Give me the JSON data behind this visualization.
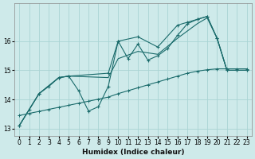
{
  "xlabel": "Humidex (Indice chaleur)",
  "background_color": "#ceeaea",
  "grid_color": "#aad4d4",
  "line_color": "#1a6b6b",
  "xlim": [
    -0.5,
    23.5
  ],
  "ylim": [
    12.75,
    17.3
  ],
  "yticks": [
    13,
    14,
    15,
    16
  ],
  "xticks": [
    0,
    1,
    2,
    3,
    4,
    5,
    6,
    7,
    8,
    9,
    10,
    11,
    12,
    13,
    14,
    15,
    16,
    17,
    18,
    19,
    20,
    21,
    22,
    23
  ],
  "noisy_x": [
    0,
    1,
    2,
    3,
    4,
    5,
    6,
    7,
    8,
    9,
    10,
    11,
    12,
    13,
    14,
    15,
    16,
    17,
    18,
    19,
    20,
    21,
    22,
    23
  ],
  "noisy_y": [
    13.1,
    13.65,
    14.2,
    14.45,
    14.75,
    14.8,
    14.3,
    13.6,
    13.75,
    14.45,
    16.0,
    15.4,
    15.9,
    15.35,
    15.5,
    15.75,
    16.2,
    16.6,
    16.75,
    16.85,
    16.1,
    15.0,
    15.0,
    15.0
  ],
  "upper_x": [
    0,
    2,
    4,
    5,
    9,
    10,
    12,
    14,
    16,
    17,
    18,
    19,
    20,
    21,
    22,
    23
  ],
  "upper_y": [
    13.1,
    14.2,
    14.75,
    14.8,
    14.9,
    16.0,
    16.15,
    15.8,
    16.55,
    16.65,
    16.75,
    16.85,
    16.1,
    15.0,
    15.0,
    15.0
  ],
  "middle_x": [
    0,
    2,
    4,
    5,
    9,
    10,
    12,
    14,
    16,
    17,
    18,
    19,
    20,
    21,
    22,
    23
  ],
  "middle_y": [
    13.1,
    14.2,
    14.75,
    14.8,
    14.75,
    15.4,
    15.65,
    15.55,
    16.1,
    16.35,
    16.6,
    16.8,
    16.1,
    15.0,
    15.0,
    15.0
  ],
  "trend_x": [
    0,
    1,
    2,
    3,
    4,
    5,
    6,
    7,
    8,
    9,
    10,
    11,
    12,
    13,
    14,
    15,
    16,
    17,
    18,
    19,
    20,
    21,
    22,
    23
  ],
  "trend_y": [
    13.45,
    13.52,
    13.59,
    13.66,
    13.73,
    13.8,
    13.87,
    13.94,
    14.01,
    14.08,
    14.2,
    14.3,
    14.4,
    14.5,
    14.6,
    14.7,
    14.8,
    14.9,
    14.97,
    15.02,
    15.05,
    15.05,
    15.05,
    15.05
  ]
}
